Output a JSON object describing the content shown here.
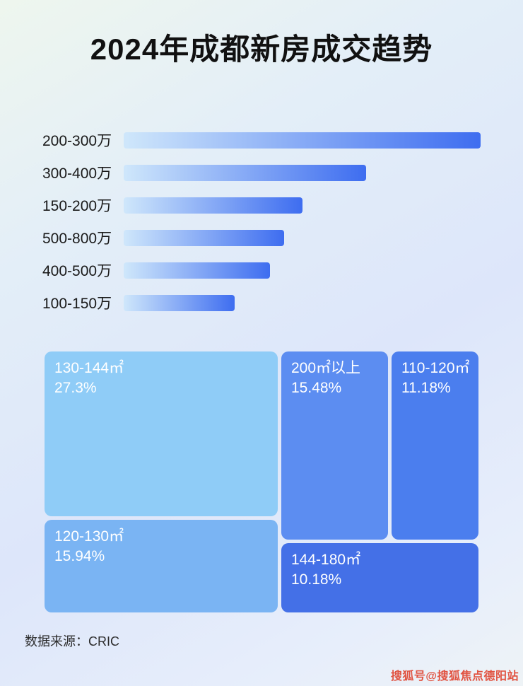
{
  "header": {
    "title": "2024年成都新房成交趋势"
  },
  "footer": {
    "source": "数据来源：CRIC",
    "watermark": "搜狐号@搜狐焦点德阳站"
  },
  "colors": {
    "bar_gradient_start": "#cfe7fb",
    "bar_gradient_end": "#3e6df0",
    "title_color": "#111111",
    "watermark_color": "#e0422e"
  },
  "chart_data": [
    {
      "type": "bar",
      "orientation": "horizontal",
      "title": "2024年成都新房成交趋势",
      "categories": [
        "200-300万",
        "300-400万",
        "150-200万",
        "500-800万",
        "400-500万",
        "100-150万"
      ],
      "values": [
        100,
        68,
        50,
        45,
        41,
        31
      ],
      "value_unit": "percent of longest bar (no numeric axis shown in image)",
      "xlabel": "",
      "ylabel": "",
      "grid": false,
      "legend": false
    },
    {
      "type": "treemap",
      "items": [
        {
          "label": "130-144㎡",
          "percent_label": "27.3%",
          "value": 27.3,
          "color": "#8fccf7"
        },
        {
          "label": "200㎡以上",
          "percent_label": "15.48%",
          "value": 15.48,
          "color": "#5c8df1"
        },
        {
          "label": "110-120㎡",
          "percent_label": "11.18%",
          "value": 11.18,
          "color": "#4b7eee"
        },
        {
          "label": "120-130㎡",
          "percent_label": "15.94%",
          "value": 15.94,
          "color": "#7ab4f3"
        },
        {
          "label": "144-180㎡",
          "percent_label": "10.18%",
          "value": 10.18,
          "color": "#4470e7"
        }
      ]
    }
  ]
}
